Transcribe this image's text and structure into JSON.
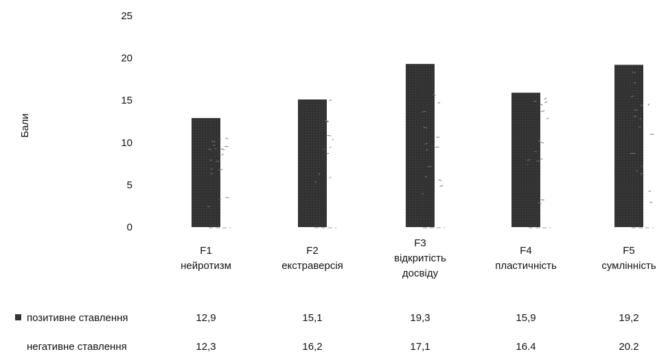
{
  "chart_data": {
    "type": "bar",
    "ylabel": "Бали",
    "ylim": [
      0,
      25
    ],
    "yticks": [
      0,
      5,
      10,
      15,
      20,
      25
    ],
    "grid": false,
    "categories": [
      [
        "F1",
        "нейротизм"
      ],
      [
        "F2",
        "екстраверсія"
      ],
      [
        "F3",
        "відкритість",
        "досвіду"
      ],
      [
        "F4",
        "пластичність"
      ],
      [
        "F5",
        "сумлінність"
      ]
    ],
    "series": [
      {
        "name": "позитивне ставлення",
        "values": [
          12.9,
          15.1,
          19.3,
          15.9,
          19.2
        ],
        "labels": [
          "12,9",
          "15,1",
          "19,3",
          "15,9",
          "19,2"
        ],
        "color": "#2b2b2b"
      },
      {
        "name": "негативне ставлення",
        "values": [
          12.3,
          16.2,
          17.1,
          16.4,
          20.2
        ],
        "labels": [
          "12,3",
          "16,2",
          "17,1",
          "16.4",
          "20.2"
        ],
        "color": "#ffffff"
      }
    ],
    "legend_position": "bottom-table"
  }
}
